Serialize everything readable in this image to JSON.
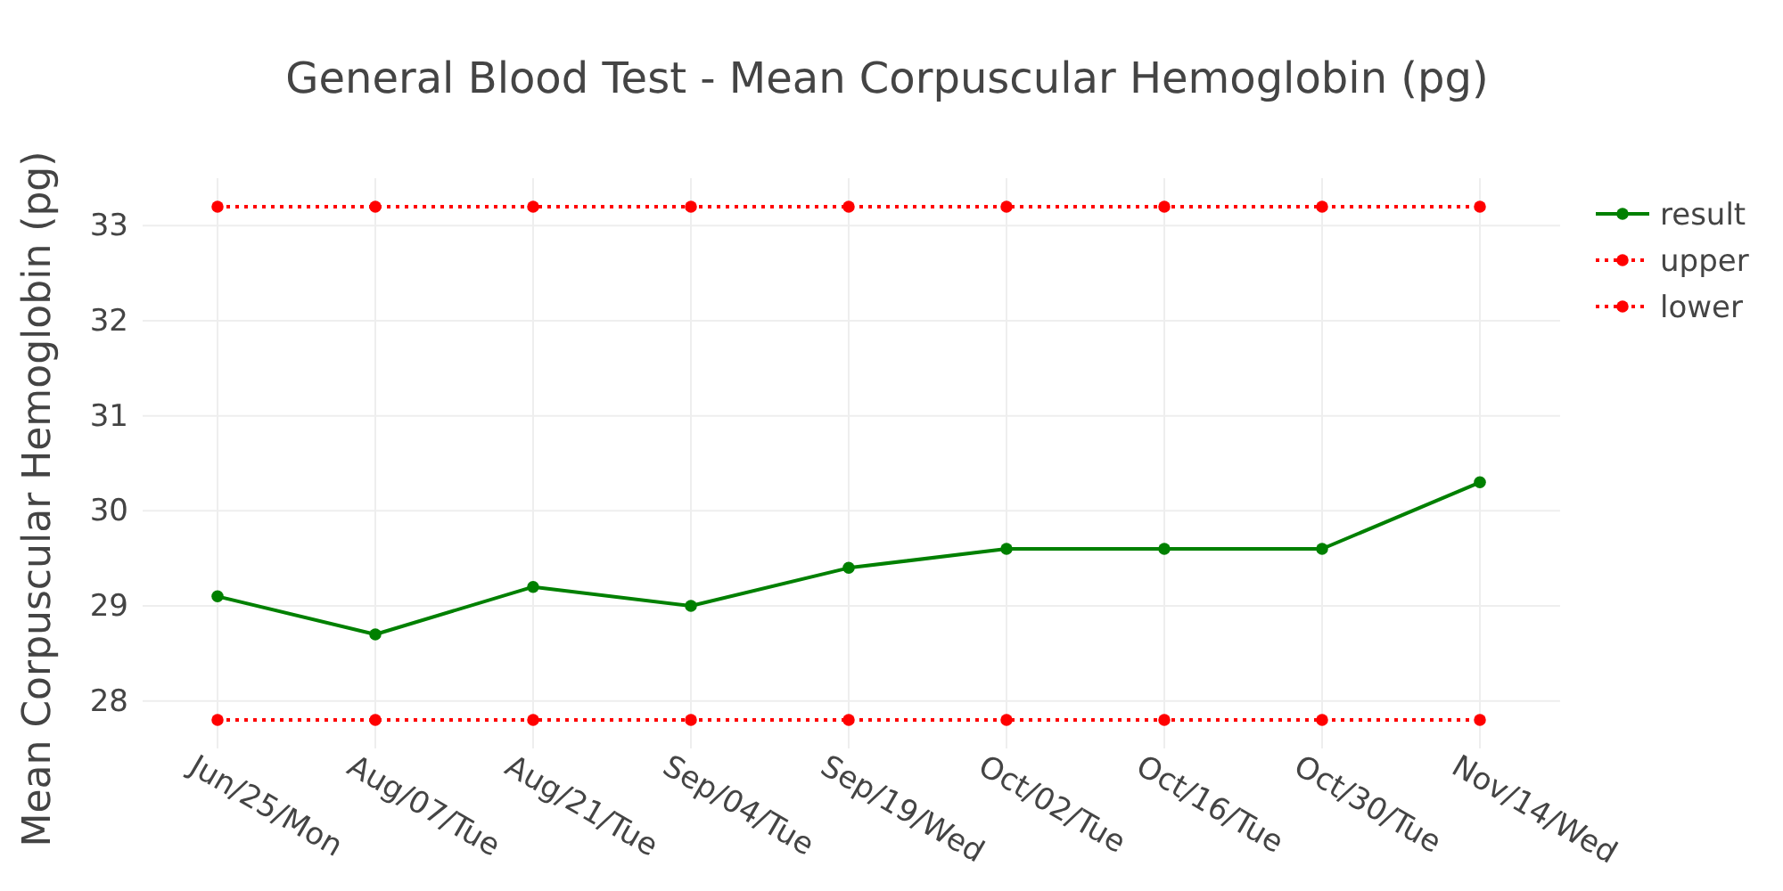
{
  "chart_data": {
    "type": "line",
    "title": "General Blood Test - Mean Corpuscular Hemoglobin (pg)",
    "ylabel": "Mean Corpuscular Hemoglobin (pg)",
    "categories": [
      "Jun/25/Mon",
      "Aug/07/Tue",
      "Aug/21/Tue",
      "Sep/04/Tue",
      "Sep/19/Wed",
      "Oct/02/Tue",
      "Oct/16/Tue",
      "Oct/30/Tue",
      "Nov/14/Wed"
    ],
    "series": [
      {
        "name": "result",
        "color": "#008000",
        "line_style": "solid",
        "values": [
          29.1,
          28.7,
          29.2,
          29.0,
          29.4,
          29.6,
          29.6,
          29.6,
          30.3
        ]
      },
      {
        "name": "upper",
        "color": "#ff0000",
        "line_style": "dotted",
        "values": [
          33.2,
          33.2,
          33.2,
          33.2,
          33.2,
          33.2,
          33.2,
          33.2,
          33.2
        ]
      },
      {
        "name": "lower",
        "color": "#ff0000",
        "line_style": "dotted",
        "values": [
          27.8,
          27.8,
          27.8,
          27.8,
          27.8,
          27.8,
          27.8,
          27.8,
          27.8
        ]
      }
    ],
    "ylim": [
      27.5,
      33.5
    ],
    "yticks": [
      28,
      29,
      30,
      31,
      32,
      33
    ],
    "grid": true,
    "legend": "top right",
    "marker": "circle"
  }
}
